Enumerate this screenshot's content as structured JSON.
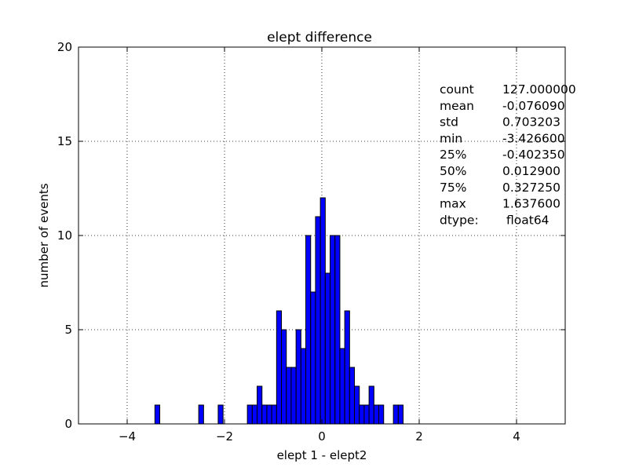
{
  "chart_data": {
    "type": "bar",
    "title": "elept difference",
    "xlabel": "elept 1 - elept2",
    "ylabel": "number of events",
    "xlim": [
      -5,
      5
    ],
    "ylim": [
      0,
      20
    ],
    "xticks": [
      -4,
      -2,
      0,
      2,
      4
    ],
    "xtick_labels": [
      "−4",
      "−2",
      "0",
      "2",
      "4"
    ],
    "yticks": [
      0,
      5,
      10,
      15,
      20
    ],
    "ytick_labels": [
      "0",
      "5",
      "10",
      "15",
      "20"
    ],
    "grid": true,
    "bar_color": "#0000ff",
    "bin_width": 0.1,
    "bins": [
      {
        "x0": -3.43,
        "count": 1
      },
      {
        "x0": -2.53,
        "count": 1
      },
      {
        "x0": -2.13,
        "count": 1
      },
      {
        "x0": -1.53,
        "count": 1
      },
      {
        "x0": -1.43,
        "count": 1
      },
      {
        "x0": -1.33,
        "count": 2
      },
      {
        "x0": -1.23,
        "count": 1
      },
      {
        "x0": -1.13,
        "count": 1
      },
      {
        "x0": -1.03,
        "count": 1
      },
      {
        "x0": -0.93,
        "count": 6
      },
      {
        "x0": -0.83,
        "count": 5
      },
      {
        "x0": -0.73,
        "count": 3
      },
      {
        "x0": -0.63,
        "count": 3
      },
      {
        "x0": -0.53,
        "count": 5
      },
      {
        "x0": -0.43,
        "count": 4
      },
      {
        "x0": -0.33,
        "count": 10
      },
      {
        "x0": -0.23,
        "count": 7
      },
      {
        "x0": -0.13,
        "count": 11
      },
      {
        "x0": -0.03,
        "count": 12
      },
      {
        "x0": 0.07,
        "count": 8
      },
      {
        "x0": 0.17,
        "count": 10
      },
      {
        "x0": 0.27,
        "count": 10
      },
      {
        "x0": 0.37,
        "count": 4
      },
      {
        "x0": 0.47,
        "count": 6
      },
      {
        "x0": 0.57,
        "count": 3
      },
      {
        "x0": 0.67,
        "count": 2
      },
      {
        "x0": 0.77,
        "count": 1
      },
      {
        "x0": 0.87,
        "count": 1
      },
      {
        "x0": 0.97,
        "count": 2
      },
      {
        "x0": 1.07,
        "count": 1
      },
      {
        "x0": 1.17,
        "count": 1
      },
      {
        "x0": 1.47,
        "count": 1
      },
      {
        "x0": 1.57,
        "count": 1
      }
    ],
    "stats": [
      {
        "label": "count",
        "value": "127.000000"
      },
      {
        "label": "mean",
        "value": "-0.076090"
      },
      {
        "label": "std",
        "value": "0.703203"
      },
      {
        "label": "min",
        "value": "-3.426600"
      },
      {
        "label": "25%",
        "value": "-0.402350"
      },
      {
        "label": "50%",
        "value": "0.012900"
      },
      {
        "label": "75%",
        "value": "0.327250"
      },
      {
        "label": "max",
        "value": "1.637600"
      },
      {
        "label": "dtype:",
        "value": "float64"
      }
    ]
  }
}
